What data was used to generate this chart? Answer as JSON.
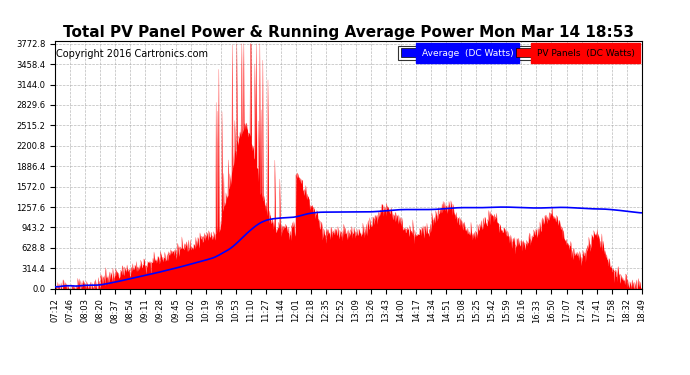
{
  "title": "Total PV Panel Power & Running Average Power Mon Mar 14 18:53",
  "copyright": "Copyright 2016 Cartronics.com",
  "legend_avg": "Average  (DC Watts)",
  "legend_pv": "PV Panels  (DC Watts)",
  "ymax": 3772.8,
  "ymin": 0.0,
  "ytick_step": 314.4,
  "x_labels": [
    "07:12",
    "07:46",
    "08:03",
    "08:20",
    "08:37",
    "08:54",
    "09:11",
    "09:28",
    "09:45",
    "10:02",
    "10:19",
    "10:36",
    "10:53",
    "11:10",
    "11:27",
    "11:44",
    "12:01",
    "12:18",
    "12:35",
    "12:52",
    "13:09",
    "13:26",
    "13:43",
    "14:00",
    "14:17",
    "14:34",
    "14:51",
    "15:08",
    "15:25",
    "15:42",
    "15:59",
    "16:16",
    "16:33",
    "16:50",
    "17:07",
    "17:24",
    "17:41",
    "17:58",
    "18:32",
    "18:49"
  ],
  "bg_color": "#ffffff",
  "plot_bg_color": "#ffffff",
  "grid_color": "#aaaaaa",
  "fill_color": "#ff0000",
  "line_avg_color": "#0000ff",
  "title_fontsize": 11,
  "copyright_fontsize": 7,
  "tick_fontsize": 6
}
